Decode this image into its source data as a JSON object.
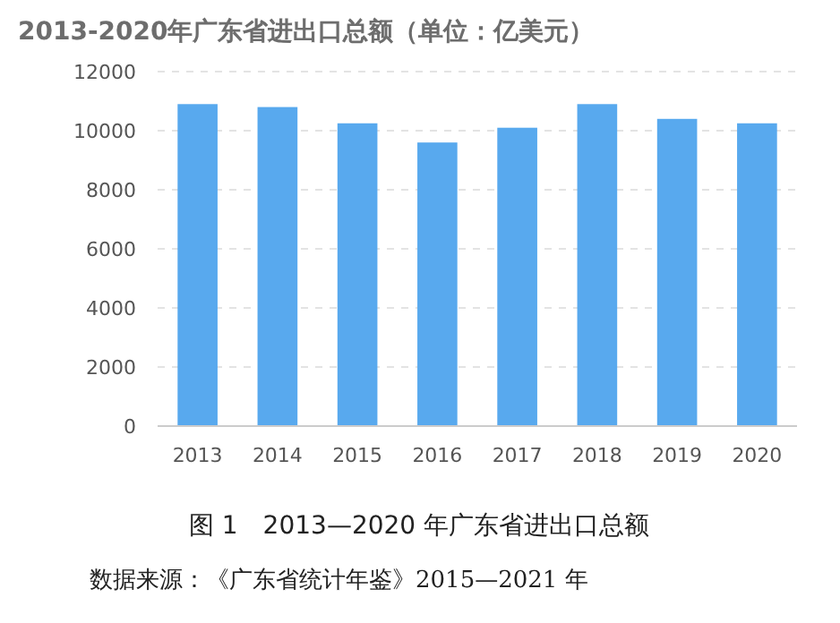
{
  "chart_data": {
    "type": "bar",
    "title": "2013-2020年广东省进出口总额（单位：亿美元）",
    "categories": [
      "2013",
      "2014",
      "2015",
      "2016",
      "2017",
      "2018",
      "2019",
      "2020"
    ],
    "values": [
      10900,
      10800,
      10250,
      9600,
      10100,
      10900,
      10400,
      10250
    ],
    "color": "#58a9ee",
    "ylim": [
      0,
      12000
    ],
    "yticks": [
      0,
      2000,
      4000,
      6000,
      8000,
      10000,
      12000
    ],
    "grid": "y",
    "annotations": [
      "图 1　2013—2020 年广东省进出口总额",
      "数据来源：《广东省统计年鉴》2015—2021 年"
    ]
  }
}
